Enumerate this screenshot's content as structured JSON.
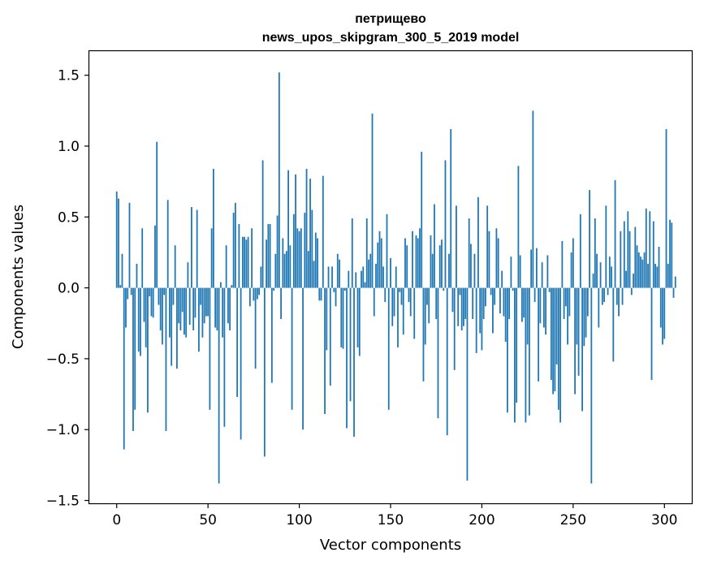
{
  "chart_data": {
    "type": "bar",
    "title": "петрищево",
    "subtitle": "news_upos_skipgram_300_5_2019 model",
    "xlabel": "Vector components",
    "ylabel": "Components values",
    "xlim": [
      -15,
      315
    ],
    "ylim": [
      -1.52,
      1.67
    ],
    "xticks": [
      0,
      50,
      100,
      150,
      200,
      250,
      300
    ],
    "xtick_labels": [
      "0",
      "50",
      "100",
      "150",
      "200",
      "250",
      "300"
    ],
    "yticks": [
      -1.5,
      -1.0,
      -0.5,
      0.0,
      0.5,
      1.0,
      1.5
    ],
    "ytick_labels": [
      "−1.5",
      "−1.0",
      "−0.5",
      "0.0",
      "0.5",
      "1.0",
      "1.5"
    ],
    "grid": false,
    "bar_color": "#1f77b4",
    "x_start": 0,
    "values": [
      0.68,
      0.63,
      0.02,
      0.24,
      -1.14,
      -0.28,
      -0.08,
      0.6,
      -0.05,
      -1.01,
      -0.86,
      0.17,
      -0.45,
      -0.48,
      0.42,
      -0.24,
      -0.42,
      -0.88,
      -0.06,
      -0.2,
      -0.21,
      0.44,
      1.03,
      -0.12,
      -0.3,
      -0.4,
      -0.05,
      -1.01,
      0.62,
      -0.35,
      -0.55,
      -0.12,
      0.3,
      -0.57,
      -0.25,
      -0.3,
      -0.17,
      -0.33,
      -0.35,
      0.18,
      -0.26,
      0.57,
      -0.3,
      -0.21,
      0.55,
      -0.45,
      -0.12,
      -0.35,
      -0.25,
      -0.2,
      -0.2,
      -0.86,
      0.42,
      0.84,
      -0.28,
      -0.3,
      -1.38,
      0.04,
      -0.35,
      -0.98,
      0.3,
      -0.25,
      -0.3,
      0.02,
      0.53,
      0.6,
      -0.77,
      0.45,
      -1.07,
      0.36,
      0.36,
      0.34,
      0.36,
      -0.13,
      0.42,
      -0.09,
      -0.57,
      -0.08,
      -0.05,
      0.15,
      0.9,
      -1.19,
      0.34,
      0.45,
      0.45,
      -0.67,
      -0.02,
      0.24,
      0.51,
      1.52,
      -0.22,
      0.35,
      0.24,
      0.26,
      0.83,
      0.3,
      -0.86,
      0.52,
      0.8,
      0.42,
      0.4,
      0.42,
      -1.0,
      0.53,
      0.84,
      0.26,
      0.77,
      0.55,
      0.19,
      0.39,
      0.35,
      -0.09,
      -0.09,
      0.79,
      -0.89,
      -0.44,
      0.15,
      -0.69,
      0.15,
      -0.03,
      -0.13,
      0.24,
      0.2,
      -0.42,
      -0.43,
      -0.02,
      -0.99,
      0.12,
      -0.8,
      0.49,
      -1.05,
      0.11,
      -0.42,
      -0.48,
      0.12,
      0.15,
      0.04,
      0.49,
      0.2,
      0.24,
      1.23,
      -0.2,
      0.17,
      0.32,
      0.4,
      0.35,
      0.15,
      -0.1,
      0.52,
      -0.86,
      0.21,
      -0.27,
      -0.2,
      0.15,
      -0.42,
      -0.03,
      -0.12,
      -0.33,
      0.35,
      0.3,
      -0.1,
      -0.2,
      0.4,
      -0.36,
      0.37,
      0.35,
      0.42,
      0.96,
      -0.66,
      -0.4,
      -0.12,
      -0.25,
      0.37,
      0.24,
      0.59,
      -0.22,
      -0.92,
      0.3,
      0.34,
      -0.02,
      0.9,
      -1.04,
      0.24,
      1.12,
      -0.17,
      -0.58,
      0.58,
      -0.27,
      -0.05,
      -0.3,
      -0.27,
      -0.22,
      -1.36,
      0.49,
      0.31,
      -0.22,
      0.24,
      -0.46,
      0.64,
      -0.32,
      -0.44,
      -0.22,
      -0.13,
      0.58,
      0.4,
      -0.05,
      -0.32,
      -0.12,
      0.42,
      0.35,
      -0.18,
      0.12,
      -0.2,
      -0.38,
      -0.88,
      -0.22,
      0.22,
      -0.02,
      -0.95,
      -0.81,
      0.86,
      0.23,
      -0.24,
      -0.21,
      -0.95,
      -0.4,
      -0.9,
      0.27,
      1.25,
      -0.1,
      0.28,
      -0.66,
      -0.25,
      0.18,
      -0.28,
      -0.33,
      0.23,
      -0.03,
      -0.65,
      -0.75,
      -0.73,
      -0.54,
      -0.86,
      -0.95,
      0.33,
      -0.22,
      -0.13,
      -0.4,
      -0.2,
      0.25,
      0.35,
      -0.75,
      -0.4,
      -0.62,
      0.52,
      -0.87,
      -0.41,
      -0.35,
      -0.2,
      0.69,
      -1.38,
      0.1,
      0.49,
      0.24,
      -0.28,
      0.18,
      -0.12,
      -0.1,
      0.58,
      -0.05,
      0.22,
      0.15,
      -0.52,
      0.76,
      -0.12,
      -0.2,
      0.4,
      -0.12,
      0.47,
      0.12,
      0.54,
      0.4,
      -0.05,
      0.1,
      0.43,
      0.3,
      0.25,
      0.22,
      0.2,
      0.25,
      0.56,
      0.17,
      0.54,
      -0.65,
      0.47,
      0.17,
      0.15,
      0.29,
      -0.28,
      -0.4,
      -0.36,
      1.12,
      0.17,
      0.48,
      0.46,
      -0.07,
      0.08
    ]
  }
}
